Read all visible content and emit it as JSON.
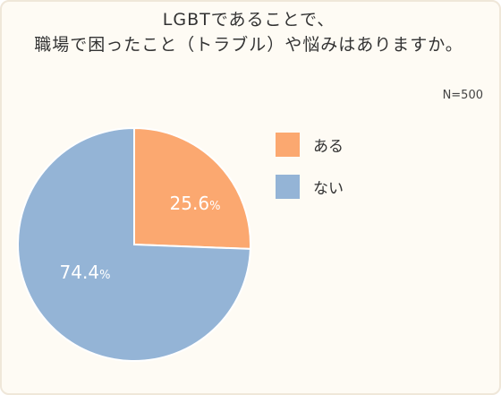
{
  "title": {
    "line1": "LGBTであることで、",
    "line2": "職場で困ったこと（トラブル）や悩みはありますか。"
  },
  "sample_size": "N=500",
  "colors": {
    "background": "#fefbf4",
    "border": "#efe7d9",
    "aru": "#fba870",
    "nai": "#94b4d6"
  },
  "chart_data": {
    "type": "pie",
    "title": "LGBTであることで、職場で困ったこと（トラブル）や悩みはありますか。",
    "start": "12 o'clock, clockwise",
    "slices": [
      {
        "name": "ある",
        "value": 25.6,
        "label": "25.6%",
        "color": "#fba870"
      },
      {
        "name": "ない",
        "value": 74.4,
        "label": "74.4%",
        "color": "#94b4d6"
      }
    ],
    "legend": {
      "placement": "right",
      "items": [
        "ある",
        "ない"
      ]
    }
  }
}
